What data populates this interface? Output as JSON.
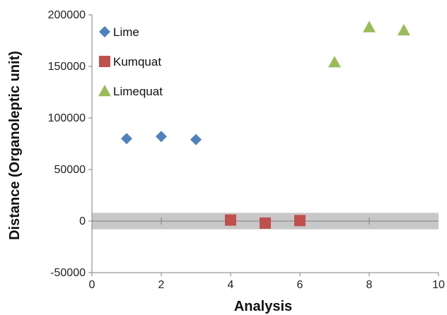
{
  "chart_data": {
    "type": "scatter",
    "title": "",
    "xlabel": "Analysis",
    "ylabel": "Distance (Organoleptic unit)",
    "xlim": [
      0,
      10
    ],
    "ylim": [
      -50000,
      200000
    ],
    "xticks": [
      "0",
      "2",
      "4",
      "6",
      "8",
      "10"
    ],
    "yticks": [
      "-50000",
      "0",
      "50000",
      "100000",
      "150000",
      "200000"
    ],
    "grid": false,
    "legend_position": "top-left inside plot",
    "reference_band": {
      "y_from": -8000,
      "y_to": 8000,
      "color": "#c8c8c8"
    },
    "series": [
      {
        "name": "Lime",
        "marker": "diamond",
        "color": "#4f81bd",
        "points": [
          {
            "x": 1,
            "y": 80000
          },
          {
            "x": 2,
            "y": 82000
          },
          {
            "x": 3,
            "y": 79000
          }
        ]
      },
      {
        "name": "Kumquat",
        "marker": "square",
        "color": "#c0504d",
        "points": [
          {
            "x": 4,
            "y": 1000
          },
          {
            "x": 5,
            "y": -2000
          },
          {
            "x": 6,
            "y": 500
          }
        ]
      },
      {
        "name": "Limequat",
        "marker": "triangle",
        "color": "#9bbb59",
        "points": [
          {
            "x": 7,
            "y": 154000
          },
          {
            "x": 8,
            "y": 188000
          },
          {
            "x": 9,
            "y": 185000
          }
        ]
      }
    ]
  }
}
